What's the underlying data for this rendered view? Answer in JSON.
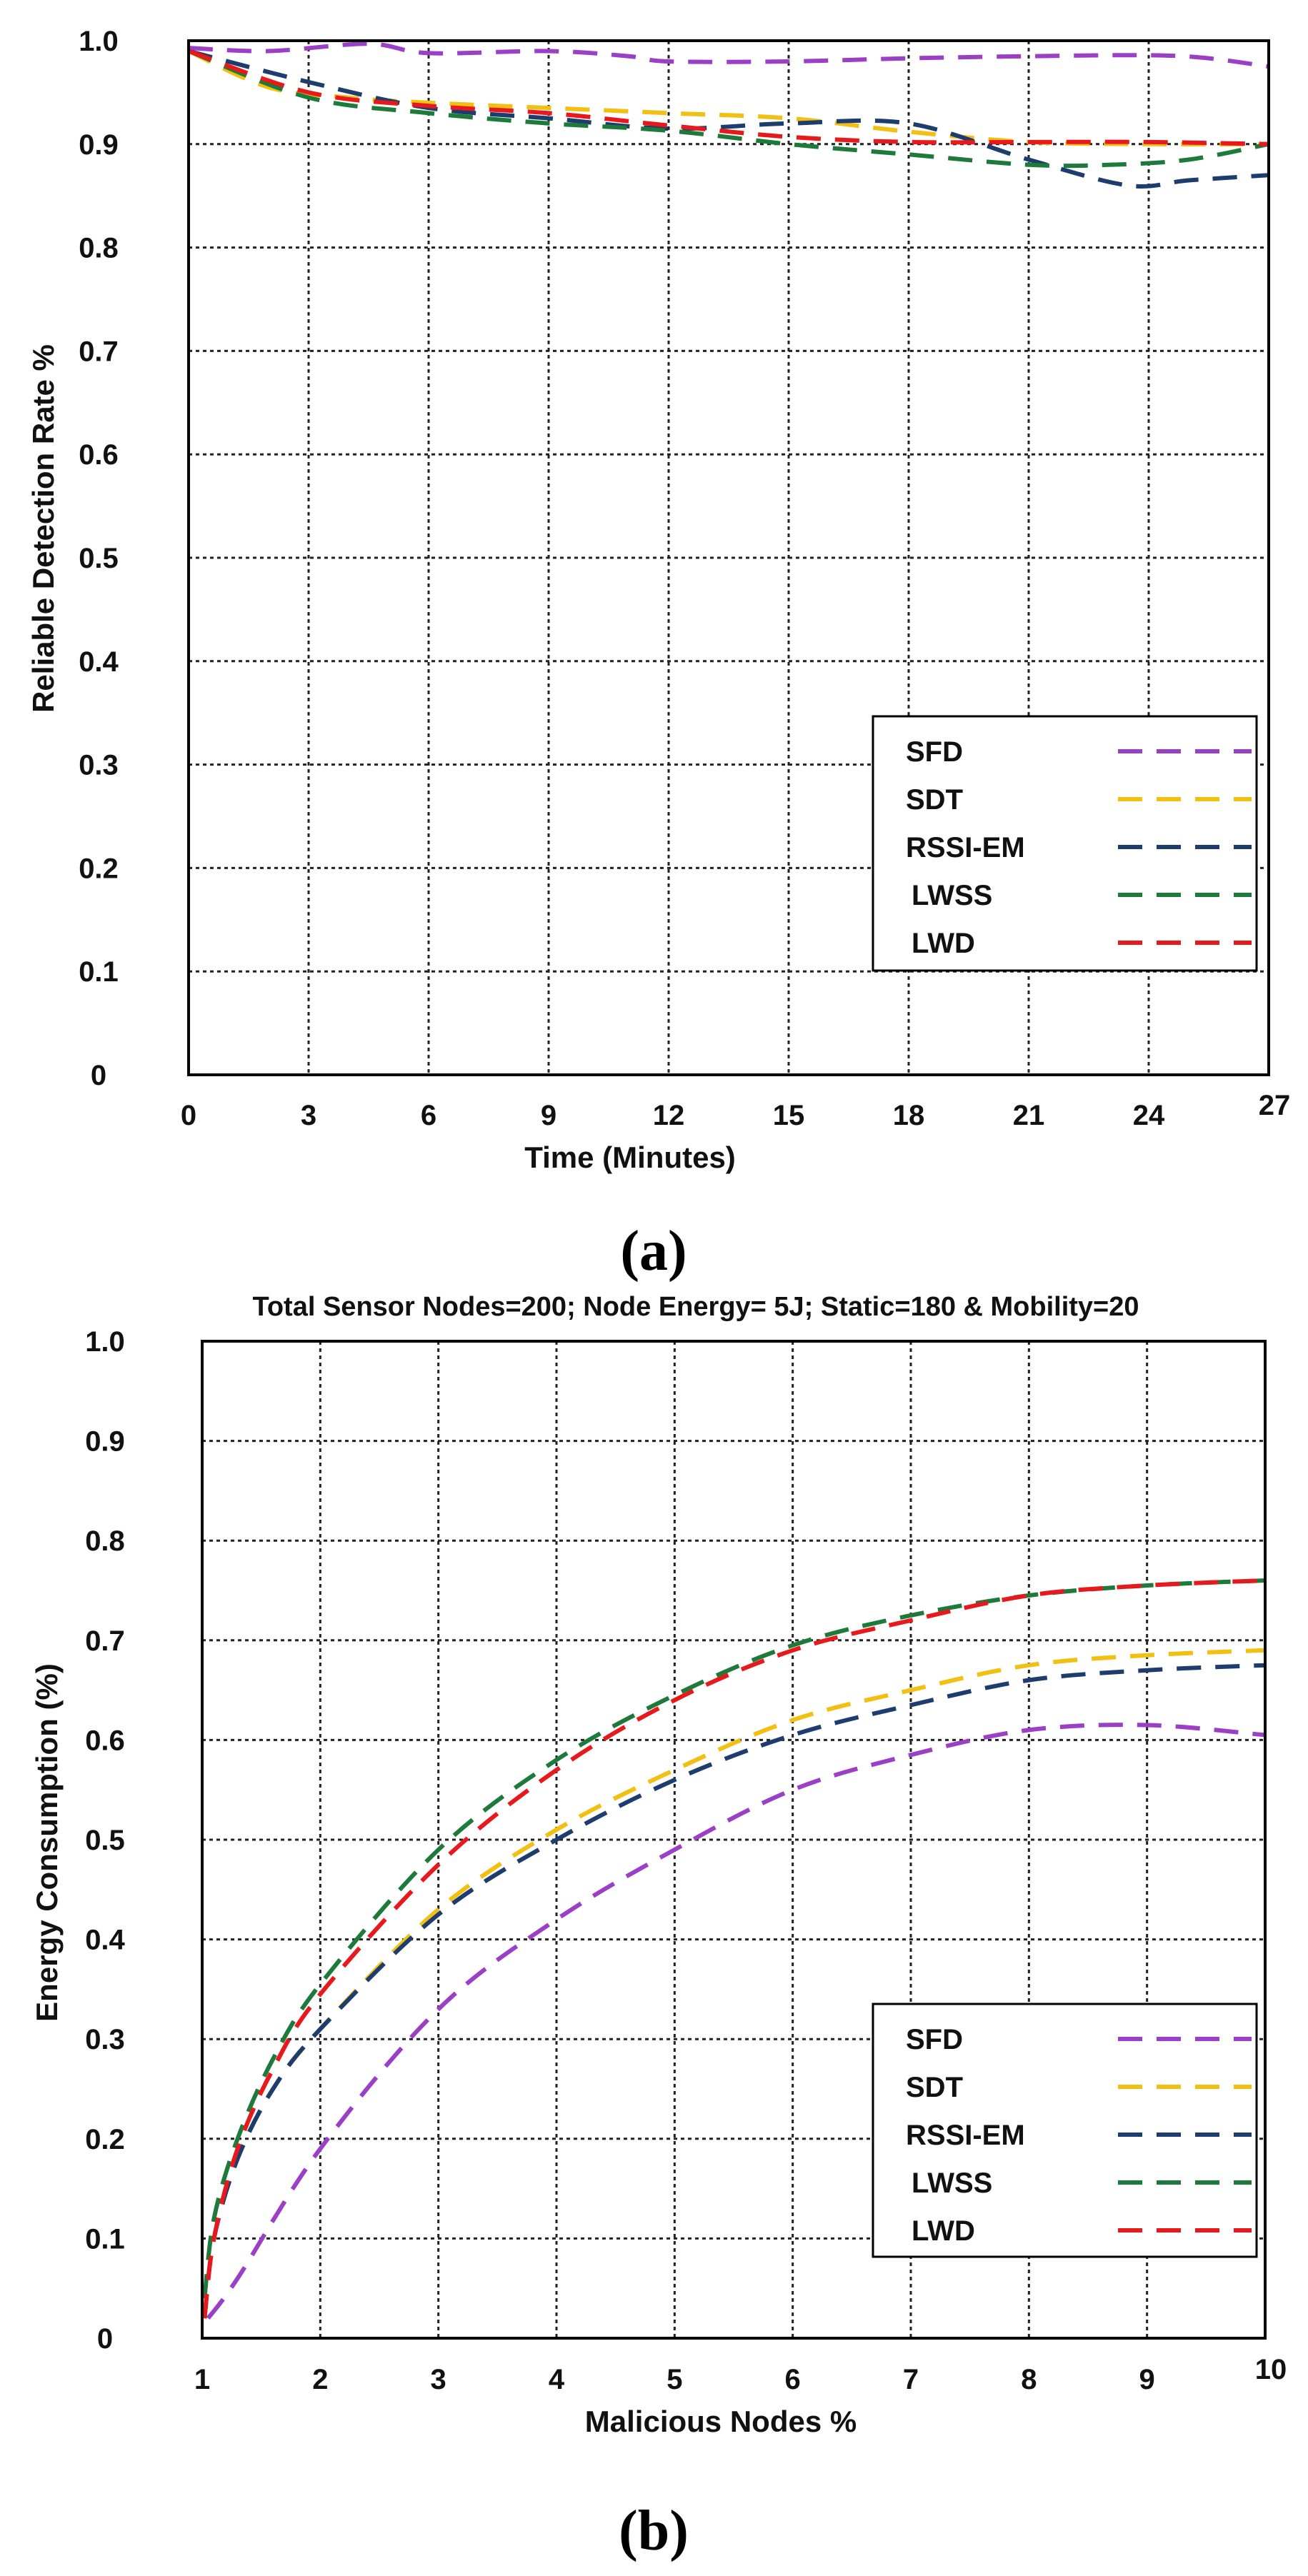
{
  "chart_data": [
    {
      "type": "line",
      "id": "a",
      "panel_label": "(a)",
      "title": "",
      "xlabel": "Time (Minutes)",
      "ylabel": "Reliable Detection Rate %",
      "x_ticks": [
        "0",
        "3",
        "6",
        "9",
        "12",
        "15",
        "18",
        "21",
        "24",
        "27"
      ],
      "y_ticks": [
        "0",
        "0.1",
        "0.2",
        "0.3",
        "0.4",
        "0.5",
        "0.6",
        "0.7",
        "0.8",
        "0.9",
        "1.0"
      ],
      "xlim": [
        0,
        27
      ],
      "ylim": [
        0,
        1.0
      ],
      "legend_position": "bottom-right",
      "series": [
        {
          "name": "SFD",
          "color": "#9b3fc6",
          "x": [
            0,
            2,
            4.5,
            6,
            9,
            11,
            12,
            15,
            18,
            21,
            24,
            25.5,
            27
          ],
          "y": [
            0.993,
            0.99,
            0.997,
            0.988,
            0.99,
            0.985,
            0.98,
            0.98,
            0.983,
            0.985,
            0.986,
            0.983,
            0.975
          ]
        },
        {
          "name": "SDT",
          "color": "#f2c012",
          "x": [
            0,
            2,
            4,
            6,
            9,
            12,
            15,
            18,
            21,
            24,
            27
          ],
          "y": [
            0.99,
            0.955,
            0.945,
            0.94,
            0.935,
            0.93,
            0.925,
            0.912,
            0.902,
            0.9,
            0.9
          ]
        },
        {
          "name": "RSSI-EM",
          "color": "#1c3d6e",
          "x": [
            0,
            3,
            6,
            9,
            12,
            15,
            18,
            21,
            23.5,
            25,
            27
          ],
          "y": [
            0.99,
            0.96,
            0.935,
            0.925,
            0.915,
            0.92,
            0.92,
            0.885,
            0.86,
            0.865,
            0.87
          ]
        },
        {
          "name": "LWSS",
          "color": "#1e7a3a",
          "x": [
            0,
            3,
            6,
            9,
            12,
            15,
            18,
            21,
            23,
            25,
            27
          ],
          "y": [
            0.99,
            0.945,
            0.93,
            0.92,
            0.913,
            0.9,
            0.89,
            0.88,
            0.88,
            0.885,
            0.9
          ]
        },
        {
          "name": "LWD",
          "color": "#e8191c",
          "x": [
            0,
            3,
            6,
            9,
            12,
            15,
            18,
            21,
            24,
            27
          ],
          "y": [
            0.99,
            0.95,
            0.937,
            0.93,
            0.918,
            0.907,
            0.902,
            0.902,
            0.902,
            0.9
          ]
        }
      ]
    },
    {
      "type": "line",
      "id": "b",
      "panel_label": "(b)",
      "title": "Total Sensor Nodes=200; Node Energy= 5J; Static=180 & Mobility=20",
      "xlabel": "Malicious Nodes %",
      "ylabel": "Energy Consumption (%)",
      "x_ticks": [
        "1",
        "2",
        "3",
        "4",
        "5",
        "6",
        "7",
        "8",
        "9",
        "10"
      ],
      "y_ticks": [
        "0",
        "0.1",
        "0.2",
        "0.3",
        "0.4",
        "0.5",
        "0.6",
        "0.7",
        "0.8",
        "0.9",
        "1.0"
      ],
      "xlim": [
        1,
        10
      ],
      "ylim": [
        0,
        1.0
      ],
      "legend_position": "bottom-right",
      "series": [
        {
          "name": "SFD",
          "color": "#9b3fc6",
          "x": [
            1.05,
            1.3,
            2,
            3,
            4,
            5,
            6,
            7,
            8,
            9,
            10
          ],
          "y": [
            0.02,
            0.06,
            0.19,
            0.33,
            0.42,
            0.49,
            0.55,
            0.585,
            0.61,
            0.615,
            0.605
          ]
        },
        {
          "name": "SDT",
          "color": "#f2c012",
          "x": [
            1.02,
            1.1,
            1.3,
            1.6,
            2,
            3,
            4,
            5,
            6,
            7,
            8,
            9,
            10
          ],
          "y": [
            0.02,
            0.1,
            0.18,
            0.25,
            0.31,
            0.43,
            0.51,
            0.57,
            0.62,
            0.65,
            0.675,
            0.685,
            0.69
          ]
        },
        {
          "name": "RSSI-EM",
          "color": "#1c3d6e",
          "x": [
            1.02,
            1.1,
            1.3,
            1.6,
            2,
            3,
            4,
            5,
            6,
            7,
            8,
            9,
            10
          ],
          "y": [
            0.02,
            0.1,
            0.18,
            0.25,
            0.31,
            0.425,
            0.5,
            0.56,
            0.605,
            0.635,
            0.66,
            0.67,
            0.675
          ]
        },
        {
          "name": "LWSS",
          "color": "#1e7a3a",
          "x": [
            1.02,
            1.1,
            1.3,
            1.6,
            2,
            3,
            4,
            5,
            6,
            7,
            8,
            9,
            10
          ],
          "y": [
            0.04,
            0.12,
            0.2,
            0.28,
            0.355,
            0.49,
            0.58,
            0.645,
            0.695,
            0.725,
            0.745,
            0.755,
            0.76
          ]
        },
        {
          "name": "LWD",
          "color": "#e8191c",
          "x": [
            1.02,
            1.1,
            1.3,
            1.6,
            2,
            3,
            4,
            5,
            6,
            7,
            8,
            9,
            10
          ],
          "y": [
            0.02,
            0.1,
            0.19,
            0.27,
            0.345,
            0.475,
            0.57,
            0.64,
            0.69,
            0.72,
            0.745,
            0.755,
            0.76
          ]
        }
      ]
    }
  ]
}
